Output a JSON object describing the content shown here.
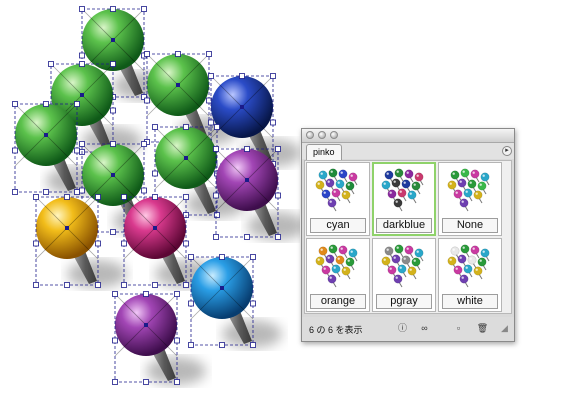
{
  "artboard": {
    "pins": [
      {
        "name": "pin-green-1",
        "color": "green"
      },
      {
        "name": "pin-green-2",
        "color": "green"
      },
      {
        "name": "pin-green-3",
        "color": "green"
      },
      {
        "name": "pin-darkblue",
        "color": "darkblue"
      },
      {
        "name": "pin-green-4",
        "color": "green"
      },
      {
        "name": "pin-green-5",
        "color": "green"
      },
      {
        "name": "pin-green-6",
        "color": "green"
      },
      {
        "name": "pin-purple-1",
        "color": "purple"
      },
      {
        "name": "pin-yellow",
        "color": "yellow"
      },
      {
        "name": "pin-magenta",
        "color": "magenta"
      },
      {
        "name": "pin-cyan",
        "color": "cyan"
      },
      {
        "name": "pin-purple-2",
        "color": "purple"
      }
    ]
  },
  "palette": {
    "tab_label": "pinko",
    "menu_icon": "triangle-right-icon",
    "swatches": [
      {
        "label": "cyan",
        "selected": false,
        "colors": [
          "#2aa7c9",
          "#1f8a3a",
          "#2b45c7",
          "#c93aa1",
          "#d3b21c",
          "#6e3fb0"
        ]
      },
      {
        "label": "darkblue",
        "selected": true,
        "colors": [
          "#1e3a9e",
          "#2a8a3a",
          "#8a2a9e",
          "#c93a6e",
          "#2aa7c9",
          "#3a3a3a"
        ]
      },
      {
        "label": "None",
        "selected": false,
        "colors": [
          "#2a9a3a",
          "#3ab84a",
          "#c93aa1",
          "#2aa7c9",
          "#d3b21c",
          "#6e3fb0"
        ]
      },
      {
        "label": "orange",
        "selected": false,
        "colors": [
          "#e08a1a",
          "#2a9a3a",
          "#c93aa1",
          "#2aa7c9",
          "#d3b21c",
          "#6e3fb0"
        ]
      },
      {
        "label": "pgray",
        "selected": false,
        "colors": [
          "#8a8a8a",
          "#2a9a3a",
          "#c93aa1",
          "#2aa7c9",
          "#d3b21c",
          "#6e3fb0"
        ]
      },
      {
        "label": "white",
        "selected": false,
        "colors": [
          "#e8e8e8",
          "#2a9a3a",
          "#c93aa1",
          "#2aa7c9",
          "#d3b21c",
          "#6e3fb0"
        ]
      }
    ],
    "status_text": "6 の 6 を表示",
    "buttons": [
      {
        "name": "info-button",
        "icon": "info-icon",
        "glyph": "ⓘ"
      },
      {
        "name": "find-button",
        "icon": "binoculars-icon",
        "glyph": "∞"
      },
      {
        "name": "new-swatch-button",
        "icon": "new-icon",
        "glyph": "▫"
      },
      {
        "name": "delete-button",
        "icon": "trash-icon",
        "glyph": "🗑"
      }
    ]
  },
  "colors": {
    "green": "#2e9c3c",
    "darkblue": "#15308f",
    "purple": "#8a2f98",
    "yellow": "#e3a400",
    "magenta": "#c51f78",
    "cyan": "#1a8ad6",
    "selection": "#1b1b8a"
  }
}
